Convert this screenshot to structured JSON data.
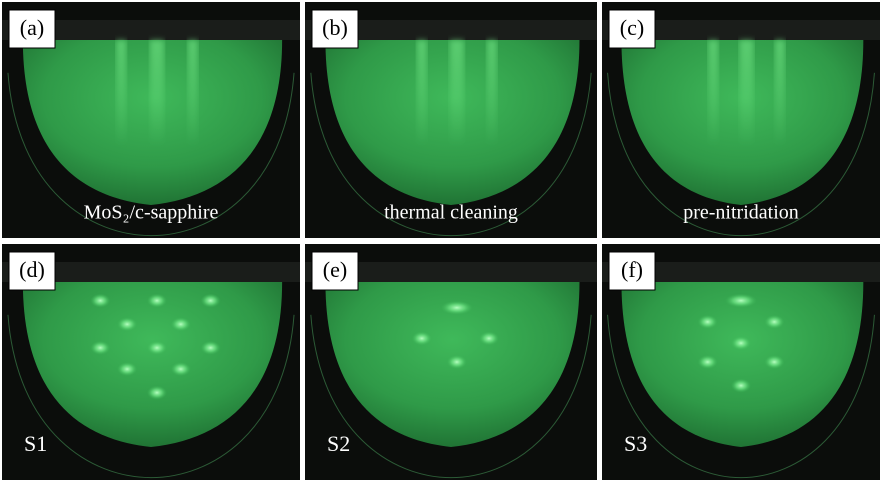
{
  "panels": [
    {
      "label": "(a)",
      "caption": "MoS₂/c-sapphire"
    },
    {
      "label": "(b)",
      "caption": "thermal cleaning"
    },
    {
      "label": "(c)",
      "caption": "pre-nitridation"
    },
    {
      "label": "(d)",
      "caption": "S1"
    },
    {
      "label": "(e)",
      "caption": "S2"
    },
    {
      "label": "(f)",
      "caption": "S3"
    }
  ]
}
